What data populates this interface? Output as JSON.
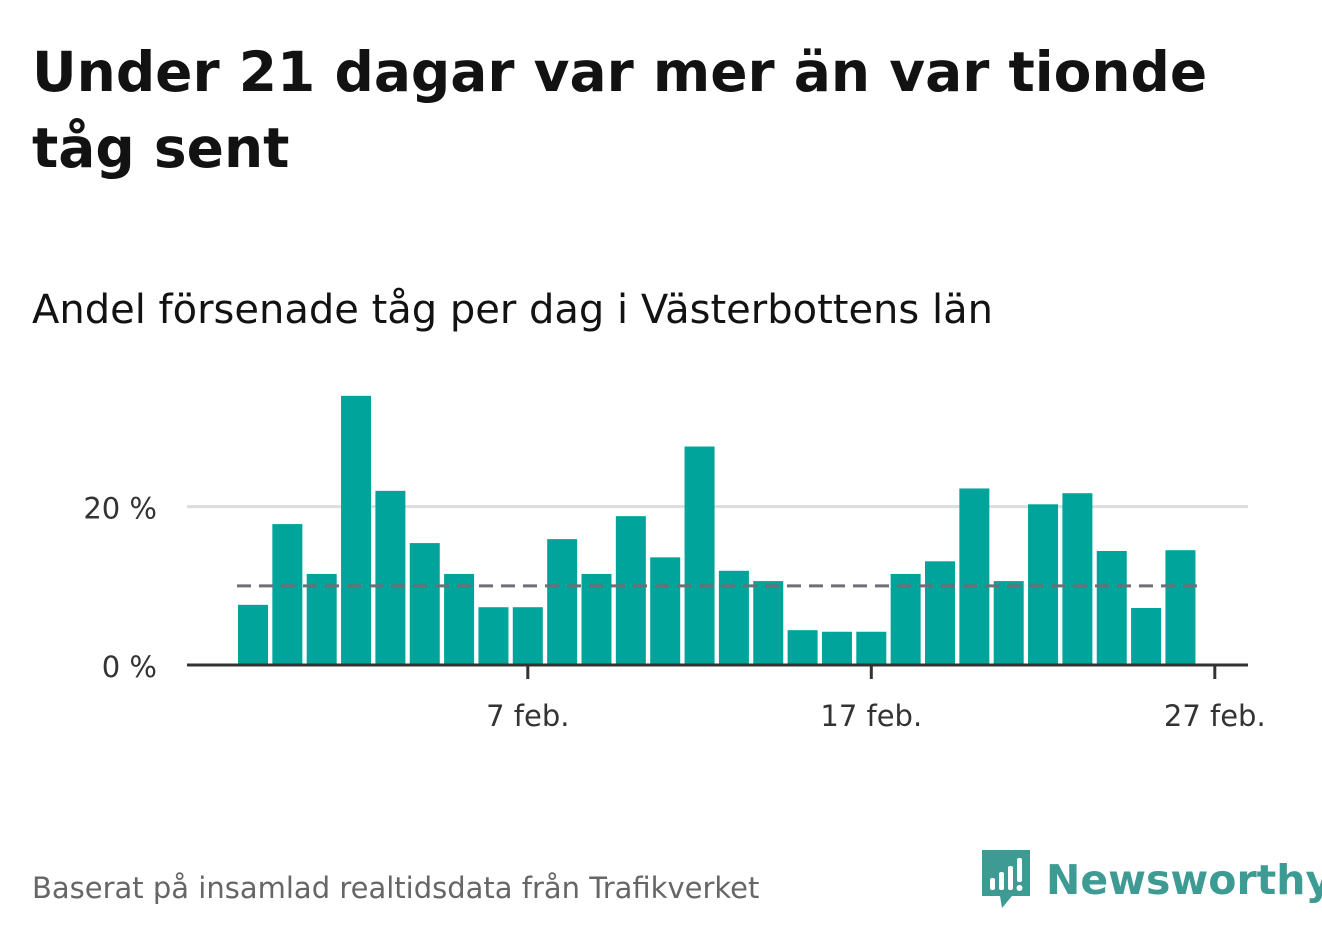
{
  "title": "Under 21 dagar var mer än var tionde tåg sent",
  "subtitle": "Andel försenade tåg per dag i Västerbottens län",
  "source": "Baserat på insamlad realtidsdata från Trafikverket",
  "brand": "Newsworthy",
  "colors": {
    "bar": "#00a49a",
    "reference_line": "#6e6e78",
    "grid": "#dddddd",
    "axis": "#333333",
    "brand": "#3d9b94"
  },
  "chart_data": {
    "type": "bar",
    "x": [
      "2023-01-30",
      "2023-01-31",
      "2023-02-01",
      "2023-02-02",
      "2023-02-03",
      "2023-02-04",
      "2023-02-05",
      "2023-02-06",
      "2023-02-07",
      "2023-02-08",
      "2023-02-09",
      "2023-02-10",
      "2023-02-11",
      "2023-02-12",
      "2023-02-13",
      "2023-02-14",
      "2023-02-15",
      "2023-02-16",
      "2023-02-17",
      "2023-02-18",
      "2023-02-19",
      "2023-02-20",
      "2023-02-21",
      "2023-02-22",
      "2023-02-23",
      "2023-02-24",
      "2023-02-25",
      "2023-02-26",
      "2023-02-27"
    ],
    "values": [
      7.6,
      17.8,
      11.5,
      34.0,
      22.0,
      15.4,
      11.5,
      7.3,
      7.3,
      15.9,
      11.5,
      18.8,
      13.6,
      27.6,
      11.9,
      10.6,
      4.4,
      4.2,
      4.2,
      11.5,
      13.1,
      22.3,
      10.6,
      20.3,
      21.7,
      14.4,
      7.2,
      14.5,
      null
    ],
    "reference_line": 10,
    "ylim": [
      0,
      36
    ],
    "y_ticks": [
      {
        "value": 0,
        "label": "0 %"
      },
      {
        "value": 20,
        "label": "20 %"
      }
    ],
    "x_ticks": [
      {
        "date": "2023-02-07",
        "label": "7 feb."
      },
      {
        "date": "2023-02-17",
        "label": "17 feb."
      },
      {
        "date": "2023-02-27",
        "label": "27 feb."
      }
    ],
    "grid": true
  }
}
